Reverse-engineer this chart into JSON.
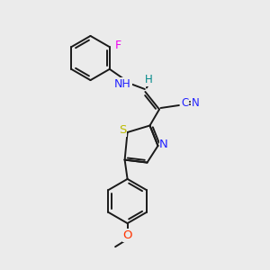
{
  "bg_color": "#ebebeb",
  "bond_color": "#1a1a1a",
  "bond_width": 1.4,
  "atom_colors": {
    "F": "#ee00ee",
    "N": "#2222ff",
    "S": "#bbbb00",
    "O": "#ff3300",
    "H": "#008888",
    "default": "#1a1a1a"
  },
  "font_size": 8.5,
  "fig_width": 3.0,
  "fig_height": 3.0,
  "dpi": 100,
  "xlim": [
    0,
    10
  ],
  "ylim": [
    0,
    10
  ]
}
